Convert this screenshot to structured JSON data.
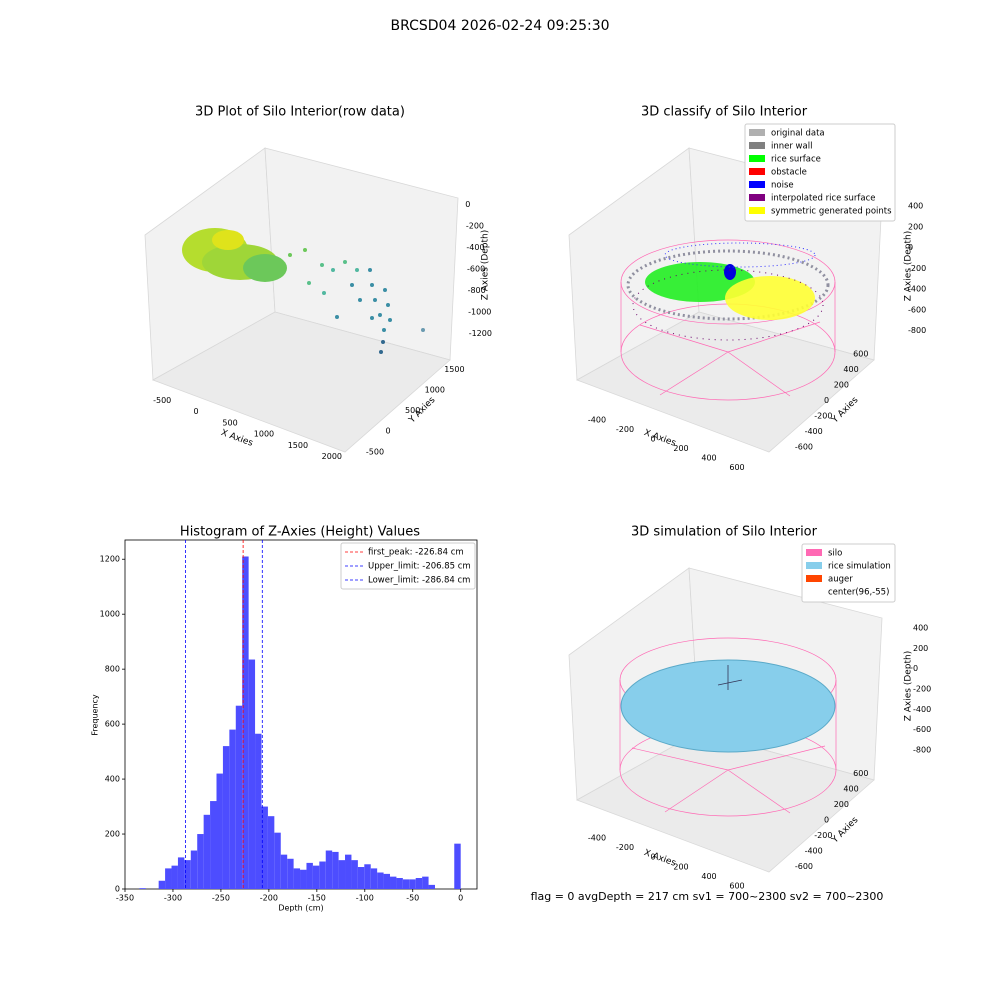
{
  "title": "BRCSD04 2026-02-24 09:25:30",
  "footer": "flag = 0     avgDepth = 217 cm  sv1 = 700~2300  sv2 = 700~2300",
  "chart_data": [
    {
      "type": "scatter3d",
      "title": "3D Plot of Silo Interior(row data)",
      "xlabel": "X Axies",
      "ylabel": "Y Axies",
      "zlabel": "Z Axies (Depth)",
      "xlim": [
        -650,
        2150
      ],
      "xticks": [
        -500,
        0,
        500,
        1000,
        1500,
        2000
      ],
      "ylim": [
        -650,
        1750
      ],
      "yticks": [
        -500,
        0,
        500,
        1000,
        1500
      ],
      "zlim": [
        -1300,
        100
      ],
      "zticks": [
        0,
        -200,
        -400,
        -600,
        -800,
        -1000,
        -1200
      ]
    },
    {
      "type": "scatter3d",
      "title": "3D classify of Silo Interior",
      "xlabel": "X Axies",
      "ylabel": "Y Axies",
      "zlabel": "Z Axies (Depth)",
      "xlim": [
        -500,
        700
      ],
      "xticks": [
        -400,
        -200,
        0,
        200,
        400,
        600
      ],
      "ylim": [
        -700,
        700
      ],
      "yticks": [
        -600,
        -400,
        -200,
        0,
        200,
        400,
        600
      ],
      "zlim": [
        -900,
        450
      ],
      "zticks": [
        400,
        200,
        0,
        -200,
        -400,
        -600,
        -800
      ],
      "legend": [
        {
          "name": "original data",
          "color": "#b0b0b0"
        },
        {
          "name": "inner wall",
          "color": "#808080"
        },
        {
          "name": "rice surface",
          "color": "#00ff00"
        },
        {
          "name": "obstacle",
          "color": "#ff0000"
        },
        {
          "name": "noise",
          "color": "#0000ff"
        },
        {
          "name": "interpolated rice surface",
          "color": "#800080"
        },
        {
          "name": "symmetric generated points",
          "color": "#ffff00"
        }
      ]
    },
    {
      "type": "histogram",
      "title": "Histogram of Z-Axies (Height) Values",
      "xlabel": "Depth (cm)",
      "ylabel": "Frequency",
      "color": "#4d4dff",
      "bins": [
        -335,
        -328.3,
        -321.6,
        -314.9,
        -308.2,
        -301.5,
        -294.8,
        -288.1,
        -281.4,
        -274.7,
        -268,
        -261.3,
        -254.6,
        -247.9,
        -241.2,
        -234.5,
        -227.8,
        -221.1,
        -214.4,
        -207.7,
        -201,
        -194.3,
        -187.6,
        -180.9,
        -174.2,
        -167.5,
        -160.8,
        -154.1,
        -147.4,
        -140.7,
        -134,
        -127.3,
        -120.6,
        -113.9,
        -107.2,
        -100.5,
        -93.8,
        -87.1,
        -80.4,
        -73.7,
        -67,
        -60.3,
        -53.6,
        -46.9,
        -40.2,
        -33.5,
        -26.8,
        -20.1,
        -13.4,
        -6.7,
        0
      ],
      "counts": [
        3,
        0,
        0,
        30,
        75,
        85,
        115,
        105,
        140,
        200,
        270,
        320,
        420,
        520,
        580,
        667,
        1210,
        835,
        565,
        300,
        265,
        205,
        125,
        110,
        75,
        70,
        95,
        85,
        100,
        140,
        135,
        105,
        125,
        105,
        80,
        90,
        75,
        60,
        55,
        45,
        40,
        35,
        35,
        40,
        45,
        15,
        0,
        0,
        0,
        165
      ],
      "xlim": [
        -350,
        17
      ],
      "xticks": [
        -350,
        -300,
        -250,
        -200,
        -150,
        -100,
        -50,
        0
      ],
      "ylim": [
        0,
        1270
      ],
      "yticks": [
        0,
        200,
        400,
        600,
        800,
        1000,
        1200
      ],
      "lines": [
        {
          "name": "first_peak: -226.84 cm",
          "value": -226.84,
          "color": "#ff0000"
        },
        {
          "name": "Upper_limit: -206.85 cm",
          "value": -206.85,
          "color": "#0000ff"
        },
        {
          "name": "Lower_limit: -286.84 cm",
          "value": -286.84,
          "color": "#0000ff"
        }
      ]
    },
    {
      "type": "surface3d",
      "title": "3D simulation of Silo Interior",
      "xlabel": "X Axies",
      "ylabel": "Y Axies",
      "zlabel": "Z Axies (Depth)",
      "xlim": [
        -500,
        700
      ],
      "xticks": [
        -400,
        -200,
        0,
        200,
        400,
        600
      ],
      "ylim": [
        -700,
        700
      ],
      "yticks": [
        -600,
        -400,
        -200,
        0,
        200,
        400,
        600
      ],
      "zlim": [
        -900,
        450
      ],
      "zticks": [
        400,
        200,
        0,
        -200,
        -400,
        -600,
        -800
      ],
      "legend": [
        {
          "name": "silo",
          "color": "#ff69b4"
        },
        {
          "name": "rice simulation",
          "color": "#87ceeb"
        },
        {
          "name": "auger",
          "color": "#ff4500"
        },
        {
          "name": "center(96,-55)",
          "color": "#ffffff"
        }
      ]
    }
  ]
}
